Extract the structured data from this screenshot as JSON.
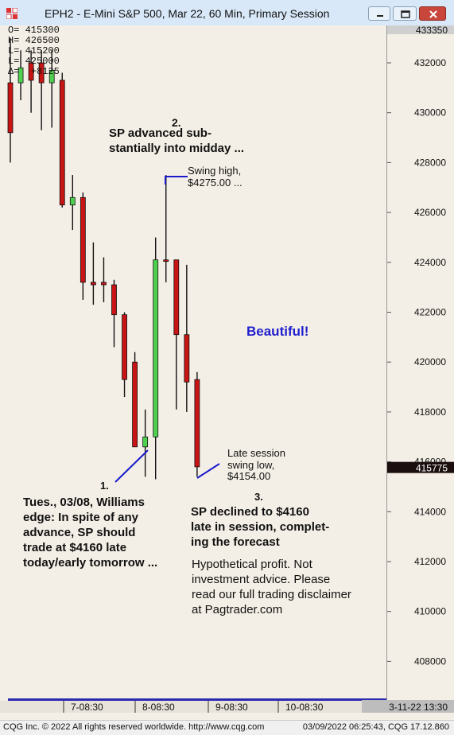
{
  "window": {
    "title": "EPH2 - E-Mini S&P 500, Mar 22, 60 Min, Primary Session"
  },
  "ohlc_readout": [
    {
      "key": "O=",
      "value": "415300"
    },
    {
      "key": "H=",
      "value": "426500"
    },
    {
      "key": "L=",
      "value": "415200"
    },
    {
      "key": "L=",
      "value": "425000"
    },
    {
      "key": "Δ=",
      "value": "+8125"
    }
  ],
  "price_axis": {
    "top_label": "433350",
    "last_price_label": "415775"
  },
  "time_axis": {
    "end_label": "3-11-22  13:30"
  },
  "annotations": {
    "label_2": "2.",
    "text_2": [
      "SP advanced sub-",
      "stantially into midday ..."
    ],
    "swing_high": [
      "Swing high,",
      "$4275.00 ..."
    ],
    "beautiful": "Beautiful!",
    "label_1": "1.",
    "text_1": [
      "Tues., 03/08, Williams",
      "edge: In spite of any",
      "advance, SP should",
      "trade at $4160 late",
      "today/early tomorrow ..."
    ],
    "swing_low": [
      "Late session",
      "swing low,",
      "$4154.00"
    ],
    "label_3": "3.",
    "text_3": [
      "SP declined to $4160",
      "late in session, complet-",
      "ing the forecast"
    ],
    "disclaimer": [
      "Hypothetical profit. Not",
      "investment advice. Please",
      "read our full trading disclaimer",
      "at Pagtrader.com"
    ]
  },
  "status_bar": {
    "left": "CQG Inc. © 2022 All rights reserved worldwide. http://www.cqg.com",
    "right": "03/09/2022 06:25:43, CQG 17.12.860"
  },
  "colors": {
    "up": "#4fd14f",
    "down": "#c81414",
    "annotation_line": "#1a1acc",
    "beautiful": "#1f1fcf",
    "last_price_bg": "#1a0e0e"
  },
  "chart_data": {
    "type": "candlestick",
    "title": "EPH2 - E-Mini S&P 500, Mar 22, 60 Min, Primary Session",
    "ylim": [
      405800,
      433350
    ],
    "yticks": [
      408000,
      410000,
      412000,
      414000,
      416000,
      418000,
      420000,
      422000,
      424000,
      426000,
      428000,
      430000,
      432000
    ],
    "xticks": [
      "7-08:30",
      "8-08:30",
      "9-08:30",
      "10-08:30"
    ],
    "last_price": 415775,
    "candles": [
      {
        "o": 431200,
        "h": 433000,
        "l": 428000,
        "c": 429200
      },
      {
        "o": 431200,
        "h": 432500,
        "l": 430500,
        "c": 431800
      },
      {
        "o": 432000,
        "h": 432500,
        "l": 430000,
        "c": 431300
      },
      {
        "o": 432000,
        "h": 432500,
        "l": 429300,
        "c": 431200
      },
      {
        "o": 431200,
        "h": 432500,
        "l": 429400,
        "c": 431700
      },
      {
        "o": 431300,
        "h": 431600,
        "l": 426200,
        "c": 426300
      },
      {
        "o": 426300,
        "h": 427500,
        "l": 425300,
        "c": 426600
      },
      {
        "o": 426600,
        "h": 426800,
        "l": 422500,
        "c": 423200
      },
      {
        "o": 423200,
        "h": 424800,
        "l": 422300,
        "c": 423100
      },
      {
        "o": 423200,
        "h": 424200,
        "l": 422400,
        "c": 423100
      },
      {
        "o": 423100,
        "h": 423300,
        "l": 420600,
        "c": 421900
      },
      {
        "o": 421900,
        "h": 422000,
        "l": 418600,
        "c": 419300
      },
      {
        "o": 420000,
        "h": 420400,
        "l": 416600,
        "c": 416600
      },
      {
        "o": 416600,
        "h": 418100,
        "l": 415400,
        "c": 417000
      },
      {
        "o": 417000,
        "h": 425000,
        "l": 415300,
        "c": 424100
      },
      {
        "o": 424100,
        "h": 427500,
        "l": 423200,
        "c": 424100
      },
      {
        "o": 424100,
        "h": 424100,
        "l": 418100,
        "c": 421100
      },
      {
        "o": 421100,
        "h": 423900,
        "l": 418000,
        "c": 419200
      },
      {
        "o": 419300,
        "h": 419600,
        "l": 415400,
        "c": 415800
      }
    ]
  }
}
